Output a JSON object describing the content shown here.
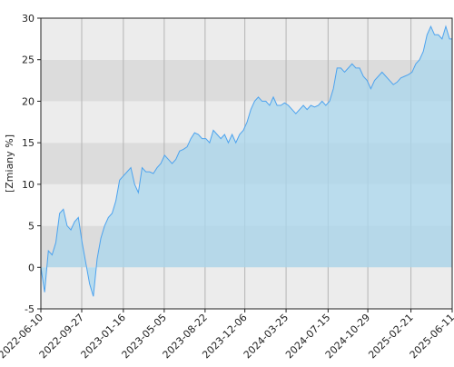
{
  "chart_data": {
    "type": "area",
    "y_label": "[Zmiany %]",
    "x": [
      "2022-06-10",
      "2022-06-20",
      "2022-06-30",
      "2022-07-10",
      "2022-07-20",
      "2022-07-30",
      "2022-08-09",
      "2022-08-19",
      "2022-08-29",
      "2022-09-08",
      "2022-09-18",
      "2022-09-28",
      "2022-10-08",
      "2022-10-18",
      "2022-10-28",
      "2022-11-07",
      "2022-11-17",
      "2022-11-27",
      "2022-12-07",
      "2022-12-17",
      "2022-12-27",
      "2023-01-06",
      "2023-01-16",
      "2023-01-26",
      "2023-02-05",
      "2023-02-15",
      "2023-02-25",
      "2023-03-07",
      "2023-03-17",
      "2023-03-27",
      "2023-04-06",
      "2023-04-16",
      "2023-04-26",
      "2023-05-06",
      "2023-05-16",
      "2023-05-26",
      "2023-06-05",
      "2023-06-15",
      "2023-06-25",
      "2023-07-05",
      "2023-07-15",
      "2023-07-25",
      "2023-08-04",
      "2023-08-14",
      "2023-08-24",
      "2023-09-03",
      "2023-09-13",
      "2023-09-23",
      "2023-10-03",
      "2023-10-13",
      "2023-10-23",
      "2023-11-02",
      "2023-11-12",
      "2023-11-22",
      "2023-12-02",
      "2023-12-12",
      "2023-12-22",
      "2024-01-01",
      "2024-01-11",
      "2024-01-21",
      "2024-01-31",
      "2024-02-10",
      "2024-02-20",
      "2024-03-01",
      "2024-03-11",
      "2024-03-21",
      "2024-03-31",
      "2024-04-10",
      "2024-04-20",
      "2024-04-30",
      "2024-05-10",
      "2024-05-20",
      "2024-05-30",
      "2024-06-09",
      "2024-06-19",
      "2024-06-29",
      "2024-07-09",
      "2024-07-19",
      "2024-07-29",
      "2024-08-08",
      "2024-08-18",
      "2024-08-28",
      "2024-09-07",
      "2024-09-17",
      "2024-09-27",
      "2024-10-07",
      "2024-10-17",
      "2024-10-27",
      "2024-11-06",
      "2024-11-16",
      "2024-11-26",
      "2024-12-06",
      "2024-12-16",
      "2024-12-26",
      "2025-01-05",
      "2025-01-15",
      "2025-01-25",
      "2025-02-04",
      "2025-02-14",
      "2025-02-24",
      "2025-03-06",
      "2025-03-16",
      "2025-03-26",
      "2025-04-05",
      "2025-04-15",
      "2025-04-25",
      "2025-05-05",
      "2025-05-15",
      "2025-05-25",
      "2025-06-04",
      "2025-06-11"
    ],
    "values": [
      0,
      -3,
      2,
      1.5,
      3,
      6.5,
      7,
      5,
      4.5,
      5.5,
      6,
      3,
      0.5,
      -2,
      -3.5,
      1,
      3.5,
      5,
      6,
      6.5,
      8,
      10.5,
      11,
      11.5,
      12,
      10,
      9,
      12,
      11.5,
      11.5,
      11.3,
      12,
      12.5,
      13.5,
      13,
      12.5,
      13,
      14,
      14.2,
      14.5,
      15.5,
      16.2,
      16,
      15.5,
      15.5,
      15,
      16.5,
      16,
      15.5,
      16,
      15,
      16,
      15,
      16,
      16.5,
      17.5,
      19,
      20,
      20.5,
      20,
      20,
      19.5,
      20.5,
      19.5,
      19.5,
      19.8,
      19.5,
      19,
      18.5,
      19,
      19.5,
      19,
      19.5,
      19.3,
      19.5,
      20,
      19.5,
      20,
      21.5,
      24,
      24,
      23.5,
      24,
      24.5,
      24,
      24,
      23,
      22.5,
      21.5,
      22.5,
      23,
      23.5,
      23,
      22.5,
      22,
      22.3,
      22.8,
      23,
      23.2,
      23.5,
      24.5,
      25,
      26,
      28,
      29,
      28,
      28,
      27.5,
      29,
      27.5,
      27.5
    ],
    "line_color": "#4da3ee",
    "fill_color": "#a9d7ee",
    "xlim": [
      "2022-06-10",
      "2025-06-11"
    ],
    "xticks": [
      "2022-06-10",
      "2022-09-27",
      "2023-01-16",
      "2023-05-05",
      "2023-08-22",
      "2023-12-06",
      "2024-03-25",
      "2024-07-15",
      "2024-10-29",
      "2025-02-21",
      "2025-06-11"
    ],
    "ylim": [
      -5,
      30
    ],
    "yticks": [
      -5,
      0,
      5,
      10,
      15,
      20,
      25,
      30
    ],
    "grid": true
  }
}
